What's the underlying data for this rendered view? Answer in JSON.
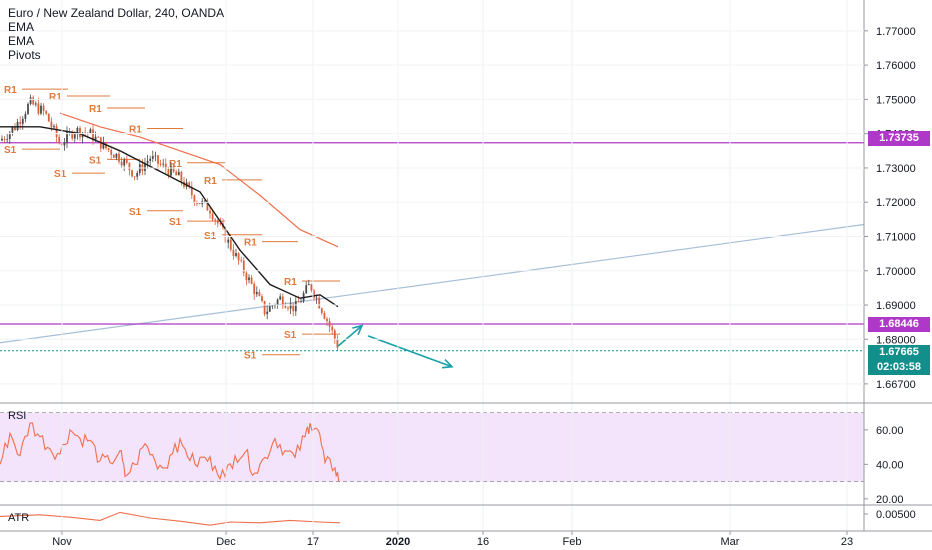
{
  "legend": {
    "title": "Euro / New Zealand Dollar, 240, OANDA",
    "indicators": [
      "EMA",
      "EMA",
      "Pivots"
    ]
  },
  "price_tags": {
    "level_upper": "1.73735",
    "level_lower": "1.68446",
    "last_price": "1.67665",
    "countdown": "02:03:58"
  },
  "panes": {
    "rsi_label": "RSI",
    "atr_label": "ATR"
  },
  "colors": {
    "candle": "#d9623a",
    "ema_fast": "#1c1c1c",
    "ema_slow": "#ef6f4c",
    "pivot": "#e07a3c",
    "horizontal_level": "#b038c8",
    "trend_line": "#a6bfd6",
    "arrow": "#1aa0a8",
    "last_price": "#138f8b",
    "rsi_band": "#f3e3fb",
    "rsi_line": "#ef6f4c",
    "atr_line": "#ef6f4c"
  },
  "chart_data": [
    {
      "type": "candlestick",
      "title": "Euro / New Zealand Dollar, 240, OANDA",
      "x_ticks": [
        "Nov",
        "Dec",
        "17",
        "2020",
        "16",
        "Feb",
        "Mar",
        "23"
      ],
      "y_ticks": [
        "1.77000",
        "1.76000",
        "1.75000",
        "1.74000",
        "1.73000",
        "1.72000",
        "1.71000",
        "1.70000",
        "1.69000",
        "1.68000",
        "1.66700"
      ],
      "ylim": [
        1.662,
        1.779
      ],
      "horizontal_levels": [
        1.73735,
        1.68446
      ],
      "last_price": 1.67665,
      "price_path": [
        [
          0,
          1.738
        ],
        [
          15,
          1.742
        ],
        [
          30,
          1.749
        ],
        [
          45,
          1.746
        ],
        [
          60,
          1.737
        ],
        [
          75,
          1.741
        ],
        [
          90,
          1.74
        ],
        [
          105,
          1.736
        ],
        [
          120,
          1.733
        ],
        [
          135,
          1.728
        ],
        [
          150,
          1.733
        ],
        [
          165,
          1.73
        ],
        [
          180,
          1.727
        ],
        [
          195,
          1.721
        ],
        [
          210,
          1.718
        ],
        [
          225,
          1.71
        ],
        [
          240,
          1.702
        ],
        [
          255,
          1.694
        ],
        [
          265,
          1.688
        ],
        [
          280,
          1.692
        ],
        [
          295,
          1.689
        ],
        [
          310,
          1.696
        ],
        [
          325,
          1.687
        ],
        [
          338,
          1.678
        ]
      ],
      "ema_fast_path": [
        [
          0,
          1.742
        ],
        [
          40,
          1.742
        ],
        [
          80,
          1.74
        ],
        [
          120,
          1.735
        ],
        [
          160,
          1.729
        ],
        [
          200,
          1.723
        ],
        [
          240,
          1.706
        ],
        [
          270,
          1.696
        ],
        [
          300,
          1.692
        ],
        [
          320,
          1.693
        ],
        [
          338,
          1.6895
        ]
      ],
      "ema_slow_path": [
        [
          60,
          1.746
        ],
        [
          100,
          1.742
        ],
        [
          140,
          1.739
        ],
        [
          180,
          1.735
        ],
        [
          220,
          1.731
        ],
        [
          260,
          1.722
        ],
        [
          300,
          1.712
        ],
        [
          338,
          1.707
        ]
      ],
      "trend_line": [
        [
          0,
          1.679
        ],
        [
          864,
          1.7135
        ]
      ],
      "projection_arrows": [
        [
          [
            338,
            1.678
          ],
          [
            362,
            1.684
          ]
        ],
        [
          [
            368,
            1.681
          ],
          [
            452,
            1.672
          ]
        ]
      ],
      "pivots": [
        {
          "label": "R1",
          "x1": 0,
          "x2": 68,
          "y": 1.753
        },
        {
          "label": "R1",
          "x1": 45,
          "x2": 110,
          "y": 1.751
        },
        {
          "label": "R1",
          "x1": 85,
          "x2": 145,
          "y": 1.7475
        },
        {
          "label": "R1",
          "x1": 125,
          "x2": 183,
          "y": 1.7415
        },
        {
          "label": "R1",
          "x1": 165,
          "x2": 225,
          "y": 1.7315
        },
        {
          "label": "R1",
          "x1": 200,
          "x2": 262,
          "y": 1.7265
        },
        {
          "label": "R1",
          "x1": 240,
          "x2": 298,
          "y": 1.7085
        },
        {
          "label": "R1",
          "x1": 280,
          "x2": 340,
          "y": 1.697
        },
        {
          "label": "S1",
          "x1": 0,
          "x2": 60,
          "y": 1.7355
        },
        {
          "label": "S1",
          "x1": 50,
          "x2": 105,
          "y": 1.7285
        },
        {
          "label": "S1",
          "x1": 85,
          "x2": 140,
          "y": 1.7325
        },
        {
          "label": "S1",
          "x1": 125,
          "x2": 183,
          "y": 1.7175
        },
        {
          "label": "S1",
          "x1": 165,
          "x2": 225,
          "y": 1.7145
        },
        {
          "label": "S1",
          "x1": 200,
          "x2": 262,
          "y": 1.7105
        },
        {
          "label": "S1",
          "x1": 280,
          "x2": 340,
          "y": 1.6815
        },
        {
          "label": "S1",
          "x1": 240,
          "x2": 300,
          "y": 1.6755
        }
      ]
    },
    {
      "type": "line",
      "title": "RSI",
      "y_ticks": [
        "60.00",
        "40.00",
        "20.00"
      ],
      "ylim": [
        17,
        75
      ],
      "band": [
        30,
        70
      ],
      "values": [
        [
          0,
          40
        ],
        [
          10,
          58
        ],
        [
          20,
          45
        ],
        [
          30,
          64
        ],
        [
          40,
          56
        ],
        [
          50,
          49
        ],
        [
          60,
          46
        ],
        [
          70,
          60
        ],
        [
          80,
          55
        ],
        [
          90,
          54
        ],
        [
          100,
          42
        ],
        [
          110,
          41
        ],
        [
          120,
          48
        ],
        [
          125,
          33
        ],
        [
          135,
          40
        ],
        [
          145,
          52
        ],
        [
          155,
          42
        ],
        [
          165,
          38
        ],
        [
          175,
          52
        ],
        [
          185,
          49
        ],
        [
          195,
          40
        ],
        [
          205,
          44
        ],
        [
          215,
          39
        ],
        [
          225,
          33
        ],
        [
          235,
          45
        ],
        [
          245,
          47
        ],
        [
          255,
          35
        ],
        [
          265,
          44
        ],
        [
          275,
          55
        ],
        [
          285,
          48
        ],
        [
          295,
          44
        ],
        [
          305,
          56
        ],
        [
          310,
          64
        ],
        [
          318,
          60
        ],
        [
          325,
          41
        ],
        [
          335,
          38
        ],
        [
          340,
          30
        ]
      ]
    },
    {
      "type": "line",
      "title": "ATR",
      "y_ticks": [
        "0.00500"
      ],
      "values": [
        [
          0,
          0.0047
        ],
        [
          40,
          0.0049
        ],
        [
          70,
          0.0046
        ],
        [
          100,
          0.0042
        ],
        [
          120,
          0.0052
        ],
        [
          150,
          0.0045
        ],
        [
          180,
          0.0041
        ],
        [
          210,
          0.0036
        ],
        [
          230,
          0.004
        ],
        [
          260,
          0.0039
        ],
        [
          290,
          0.0042
        ],
        [
          320,
          0.004
        ],
        [
          340,
          0.0039
        ]
      ]
    }
  ]
}
